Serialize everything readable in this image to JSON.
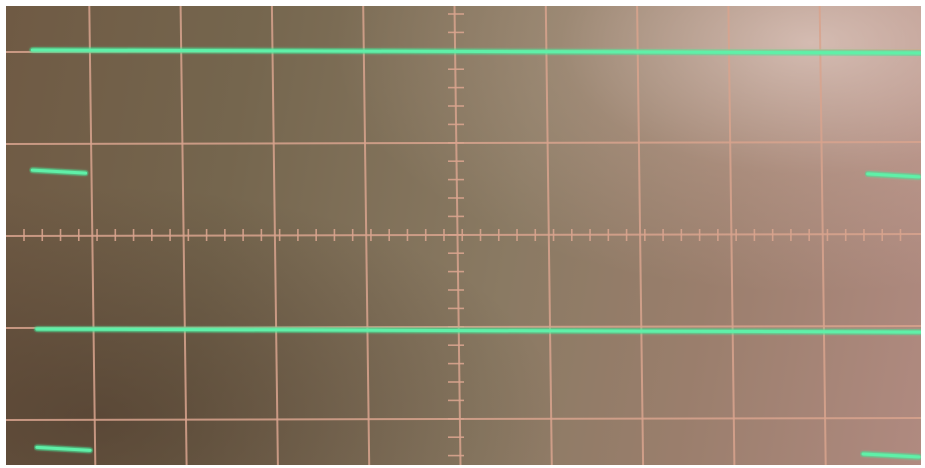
{
  "screen": {
    "colors": {
      "grid": "#d9a48e",
      "trace": "#5ff0a8",
      "trace_glow": "#2fe08a"
    },
    "graticule": {
      "divisions_x": 10,
      "divisions_y": 5,
      "minor_ticks_per_division": 5
    },
    "traces": [
      {
        "name": "trace-1-high-level",
        "level_div": 0.43,
        "start_div": 0.2,
        "end_div": 10
      },
      {
        "name": "trace-2-low-left-segment",
        "level_div": 1.7,
        "start_div": 0.2,
        "end_div": 0.85
      },
      {
        "name": "trace-2-low-right-segment",
        "level_div": 1.74,
        "start_div": 9.35,
        "end_div": 9.98
      },
      {
        "name": "trace-3-high-level",
        "level_div": 3.38,
        "start_div": 0.25,
        "end_div": 10
      },
      {
        "name": "trace-4-low-left-segment",
        "level_div": 4.63,
        "start_div": 0.25,
        "end_div": 0.9
      },
      {
        "name": "trace-4-low-right-segment",
        "level_div": 4.7,
        "start_div": 9.3,
        "end_div": 9.98
      }
    ]
  }
}
